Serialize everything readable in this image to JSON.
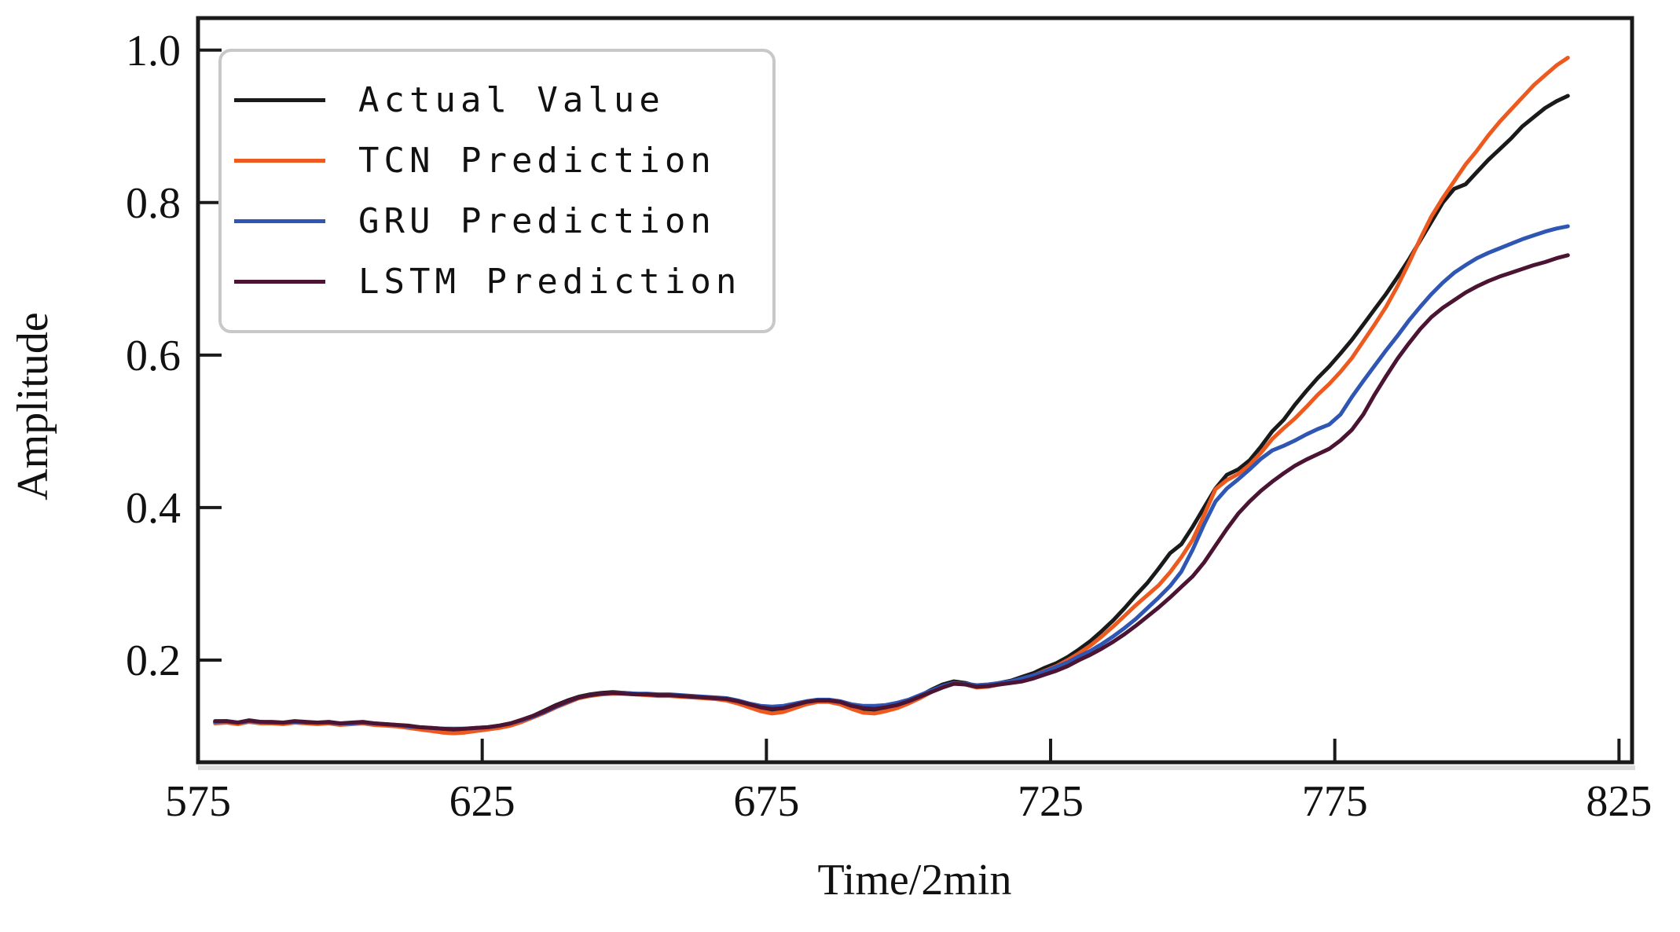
{
  "figure": {
    "xlabel": "Time/2min",
    "ylabel": "Amplitude"
  },
  "chart_data": {
    "type": "line",
    "title": "",
    "xlabel": "Time/2min",
    "ylabel": "Amplitude",
    "xlim": [
      575,
      827.3
    ],
    "ylim": [
      0.066,
      1.042
    ],
    "x_ticks": [
      575,
      625,
      675,
      725,
      775,
      825
    ],
    "y_ticks": [
      0.2,
      0.4,
      0.6,
      0.8,
      1.0
    ],
    "grid": false,
    "legend_position": "upper-left",
    "axis_color": "#1a1a1a",
    "x": [
      578,
      580,
      582,
      584,
      586,
      588,
      590,
      592,
      594,
      596,
      598,
      600,
      602,
      604,
      606,
      608,
      610,
      612,
      614,
      616,
      618,
      620,
      622,
      624,
      626,
      628,
      630,
      632,
      634,
      636,
      638,
      640,
      642,
      644,
      646,
      648,
      650,
      652,
      654,
      656,
      658,
      660,
      662,
      664,
      666,
      668,
      670,
      672,
      674,
      676,
      678,
      680,
      682,
      684,
      686,
      688,
      690,
      692,
      694,
      696,
      698,
      700,
      702,
      704,
      706,
      708,
      710,
      712,
      714,
      716,
      718,
      720,
      722,
      724,
      726,
      728,
      730,
      732,
      734,
      736,
      738,
      740,
      742,
      744,
      746,
      748,
      750,
      752,
      754,
      756,
      758,
      760,
      762,
      764,
      766,
      768,
      770,
      772,
      774,
      776,
      778,
      780,
      782,
      784,
      786,
      788,
      790,
      792,
      794,
      796,
      798,
      800,
      802,
      804,
      806,
      808,
      810,
      812,
      814,
      816
    ],
    "series": [
      {
        "name": "Actual Value",
        "color": "#1a1a1a",
        "values": [
          0.118,
          0.119,
          0.117,
          0.12,
          0.118,
          0.118,
          0.117,
          0.119,
          0.118,
          0.117,
          0.118,
          0.116,
          0.117,
          0.118,
          0.116,
          0.115,
          0.114,
          0.112,
          0.11,
          0.108,
          0.107,
          0.106,
          0.107,
          0.108,
          0.11,
          0.112,
          0.116,
          0.121,
          0.127,
          0.134,
          0.141,
          0.147,
          0.152,
          0.155,
          0.157,
          0.158,
          0.157,
          0.156,
          0.155,
          0.154,
          0.154,
          0.153,
          0.152,
          0.151,
          0.15,
          0.148,
          0.144,
          0.139,
          0.134,
          0.132,
          0.134,
          0.139,
          0.144,
          0.147,
          0.147,
          0.144,
          0.138,
          0.134,
          0.133,
          0.135,
          0.139,
          0.145,
          0.153,
          0.161,
          0.168,
          0.172,
          0.17,
          0.166,
          0.167,
          0.17,
          0.173,
          0.178,
          0.183,
          0.19,
          0.196,
          0.204,
          0.214,
          0.225,
          0.238,
          0.252,
          0.268,
          0.285,
          0.301,
          0.32,
          0.34,
          0.352,
          0.375,
          0.4,
          0.425,
          0.443,
          0.45,
          0.462,
          0.48,
          0.5,
          0.515,
          0.535,
          0.553,
          0.57,
          0.585,
          0.602,
          0.62,
          0.64,
          0.66,
          0.68,
          0.702,
          0.725,
          0.75,
          0.775,
          0.8,
          0.818,
          0.824,
          0.84,
          0.856,
          0.87,
          0.884,
          0.9,
          0.912,
          0.924,
          0.933,
          0.94
        ]
      },
      {
        "name": "TCN Prediction",
        "color": "#ed5a1f",
        "values": [
          0.117,
          0.118,
          0.116,
          0.119,
          0.117,
          0.117,
          0.116,
          0.118,
          0.117,
          0.116,
          0.117,
          0.115,
          0.116,
          0.117,
          0.115,
          0.114,
          0.113,
          0.111,
          0.109,
          0.107,
          0.105,
          0.104,
          0.105,
          0.107,
          0.109,
          0.111,
          0.114,
          0.119,
          0.125,
          0.131,
          0.138,
          0.144,
          0.15,
          0.153,
          0.155,
          0.156,
          0.156,
          0.155,
          0.154,
          0.153,
          0.153,
          0.152,
          0.151,
          0.15,
          0.149,
          0.147,
          0.143,
          0.138,
          0.133,
          0.13,
          0.132,
          0.137,
          0.142,
          0.145,
          0.145,
          0.142,
          0.136,
          0.131,
          0.13,
          0.133,
          0.137,
          0.143,
          0.15,
          0.158,
          0.165,
          0.17,
          0.168,
          0.164,
          0.165,
          0.168,
          0.171,
          0.175,
          0.18,
          0.186,
          0.192,
          0.2,
          0.209,
          0.219,
          0.231,
          0.244,
          0.258,
          0.272,
          0.285,
          0.298,
          0.315,
          0.335,
          0.358,
          0.39,
          0.424,
          0.436,
          0.444,
          0.456,
          0.472,
          0.49,
          0.504,
          0.517,
          0.532,
          0.548,
          0.562,
          0.578,
          0.596,
          0.618,
          0.64,
          0.663,
          0.69,
          0.72,
          0.752,
          0.782,
          0.806,
          0.828,
          0.85,
          0.868,
          0.888,
          0.906,
          0.922,
          0.938,
          0.954,
          0.967,
          0.98,
          0.99
        ]
      },
      {
        "name": "GRU Prediction",
        "color": "#3056b4",
        "values": [
          0.119,
          0.12,
          0.118,
          0.12,
          0.119,
          0.118,
          0.118,
          0.119,
          0.118,
          0.118,
          0.118,
          0.117,
          0.117,
          0.118,
          0.117,
          0.116,
          0.115,
          0.113,
          0.112,
          0.111,
          0.11,
          0.11,
          0.11,
          0.111,
          0.112,
          0.114,
          0.117,
          0.121,
          0.126,
          0.132,
          0.139,
          0.145,
          0.151,
          0.154,
          0.156,
          0.157,
          0.157,
          0.156,
          0.156,
          0.155,
          0.155,
          0.154,
          0.153,
          0.152,
          0.151,
          0.15,
          0.147,
          0.143,
          0.14,
          0.139,
          0.14,
          0.143,
          0.146,
          0.148,
          0.148,
          0.146,
          0.142,
          0.14,
          0.14,
          0.141,
          0.144,
          0.148,
          0.154,
          0.16,
          0.166,
          0.17,
          0.169,
          0.167,
          0.168,
          0.17,
          0.172,
          0.176,
          0.18,
          0.185,
          0.191,
          0.197,
          0.205,
          0.212,
          0.221,
          0.231,
          0.242,
          0.254,
          0.268,
          0.282,
          0.297,
          0.316,
          0.345,
          0.378,
          0.408,
          0.425,
          0.437,
          0.45,
          0.464,
          0.475,
          0.481,
          0.488,
          0.496,
          0.503,
          0.509,
          0.522,
          0.545,
          0.566,
          0.586,
          0.606,
          0.625,
          0.645,
          0.663,
          0.68,
          0.695,
          0.708,
          0.718,
          0.727,
          0.734,
          0.74,
          0.746,
          0.752,
          0.757,
          0.762,
          0.766,
          0.769
        ]
      },
      {
        "name": "LSTM Prediction",
        "color": "#4c1433",
        "values": [
          0.12,
          0.12,
          0.118,
          0.121,
          0.119,
          0.119,
          0.118,
          0.12,
          0.119,
          0.118,
          0.119,
          0.117,
          0.118,
          0.119,
          0.117,
          0.116,
          0.115,
          0.114,
          0.112,
          0.111,
          0.11,
          0.109,
          0.11,
          0.111,
          0.112,
          0.114,
          0.117,
          0.122,
          0.127,
          0.133,
          0.14,
          0.146,
          0.151,
          0.154,
          0.156,
          0.157,
          0.156,
          0.155,
          0.155,
          0.154,
          0.154,
          0.153,
          0.152,
          0.151,
          0.15,
          0.149,
          0.146,
          0.142,
          0.138,
          0.136,
          0.137,
          0.141,
          0.145,
          0.147,
          0.147,
          0.145,
          0.14,
          0.137,
          0.136,
          0.138,
          0.141,
          0.146,
          0.152,
          0.158,
          0.164,
          0.169,
          0.168,
          0.165,
          0.166,
          0.168,
          0.17,
          0.172,
          0.176,
          0.181,
          0.186,
          0.192,
          0.2,
          0.207,
          0.215,
          0.224,
          0.234,
          0.245,
          0.257,
          0.269,
          0.282,
          0.296,
          0.31,
          0.328,
          0.35,
          0.372,
          0.392,
          0.408,
          0.422,
          0.434,
          0.445,
          0.455,
          0.463,
          0.47,
          0.477,
          0.488,
          0.502,
          0.522,
          0.548,
          0.572,
          0.595,
          0.615,
          0.634,
          0.65,
          0.662,
          0.672,
          0.682,
          0.69,
          0.697,
          0.703,
          0.708,
          0.713,
          0.718,
          0.722,
          0.727,
          0.731
        ]
      }
    ]
  }
}
